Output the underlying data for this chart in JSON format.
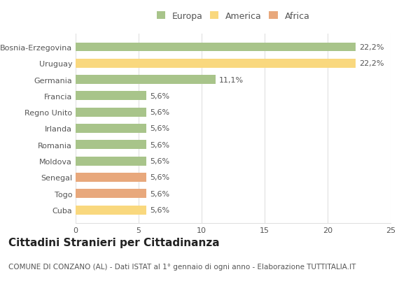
{
  "categories": [
    "Bosnia-Erzegovina",
    "Uruguay",
    "Germania",
    "Francia",
    "Regno Unito",
    "Irlanda",
    "Romania",
    "Moldova",
    "Senegal",
    "Togo",
    "Cuba"
  ],
  "values": [
    22.2,
    22.2,
    11.1,
    5.6,
    5.6,
    5.6,
    5.6,
    5.6,
    5.6,
    5.6,
    5.6
  ],
  "labels": [
    "22,2%",
    "22,2%",
    "11,1%",
    "5,6%",
    "5,6%",
    "5,6%",
    "5,6%",
    "5,6%",
    "5,6%",
    "5,6%",
    "5,6%"
  ],
  "colors": [
    "#a8c48a",
    "#f9d87e",
    "#a8c48a",
    "#a8c48a",
    "#a8c48a",
    "#a8c48a",
    "#a8c48a",
    "#a8c48a",
    "#e8a87c",
    "#e8a87c",
    "#f9d87e"
  ],
  "legend_labels": [
    "Europa",
    "America",
    "Africa"
  ],
  "legend_colors": [
    "#a8c48a",
    "#f9d87e",
    "#e8a87c"
  ],
  "title": "Cittadini Stranieri per Cittadinanza",
  "subtitle": "COMUNE DI CONZANO (AL) - Dati ISTAT al 1° gennaio di ogni anno - Elaborazione TUTTITALIA.IT",
  "xlim": [
    0,
    25
  ],
  "xticks": [
    0,
    5,
    10,
    15,
    20,
    25
  ],
  "background_color": "#ffffff",
  "grid_color": "#e0e0e0",
  "bar_height": 0.55,
  "title_fontsize": 11,
  "subtitle_fontsize": 7.5,
  "label_fontsize": 8,
  "tick_fontsize": 8,
  "legend_fontsize": 9
}
